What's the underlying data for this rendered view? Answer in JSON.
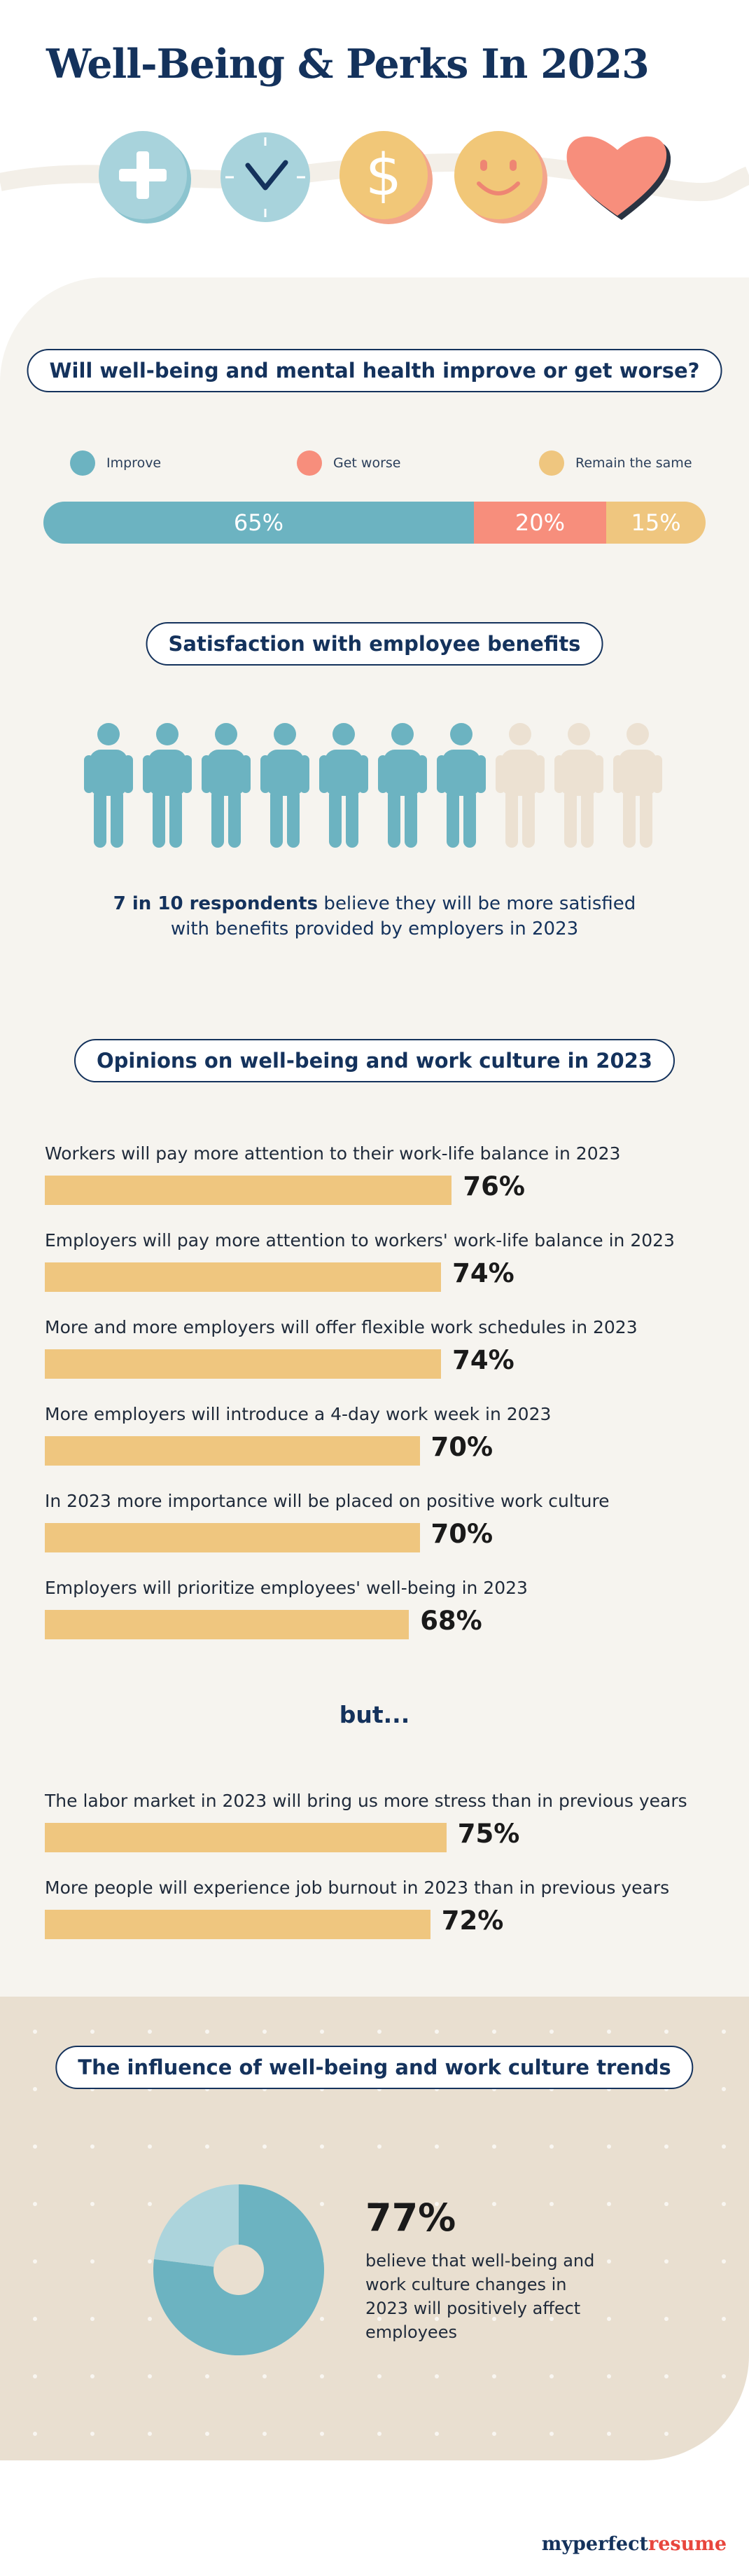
{
  "header": {
    "title": "Well-Being & Perks In 2023",
    "icons": [
      "plus-icon",
      "clock-icon",
      "dollar-icon",
      "smiley-icon",
      "heart-icon"
    ]
  },
  "colors": {
    "navy": "#14325c",
    "teal": "#6cb3c1",
    "coral": "#f78e7c",
    "gold": "#efc67f",
    "cream": "#f6f4ef",
    "sand": "#e9dfd0"
  },
  "chart_data": [
    {
      "type": "bar",
      "title": "Will well-being and mental health improve or get worse?",
      "stacked": true,
      "orientation": "horizontal",
      "legend_position": "top",
      "series": [
        {
          "name": "Improve",
          "value": 65,
          "label": "65%",
          "color": "#6cb3c1"
        },
        {
          "name": "Get worse",
          "value": 20,
          "label": "20%",
          "color": "#f78e7c"
        },
        {
          "name": "Remain the same",
          "value": 15,
          "label": "15%",
          "color": "#efc67f"
        }
      ]
    },
    {
      "type": "pictogram",
      "title": "Satisfaction with employee benefits",
      "filled": 7,
      "total": 10,
      "text_bold": "7 in 10 respondents",
      "text_line1": " believe they will be more satisfied",
      "text_line2": "with benefits provided by employers in 2023"
    },
    {
      "type": "bar",
      "title": "Opinions on well-being and work culture in 2023",
      "orientation": "horizontal",
      "items": [
        {
          "label": "Workers will pay more attention to their work-life balance in 2023",
          "value": 76,
          "value_label": "76%"
        },
        {
          "label": "Employers will pay more attention to workers' work-life balance in 2023",
          "value": 74,
          "value_label": "74%"
        },
        {
          "label": "More and more employers will offer flexible work schedules in 2023",
          "value": 74,
          "value_label": "74%"
        },
        {
          "label": "More employers will introduce a 4-day work week in 2023",
          "value": 70,
          "value_label": "70%"
        },
        {
          "label": "In 2023 more importance will be placed on positive work culture",
          "value": 70,
          "value_label": "70%"
        },
        {
          "label": "Employers will prioritize employees' well-being in 2023",
          "value": 68,
          "value_label": "68%"
        }
      ],
      "separator": "but...",
      "items_after": [
        {
          "label": "The labor market in 2023 will bring us more stress than in previous years",
          "value": 75,
          "value_label": "75%"
        },
        {
          "label": "More people will experience job burnout in 2023 than in previous years",
          "value": 72,
          "value_label": "72%"
        }
      ]
    },
    {
      "type": "pie",
      "donut": true,
      "title": "The influence of well-being and work culture trends",
      "slices": [
        {
          "value": 77,
          "color": "#6cb3c1"
        },
        {
          "value": 23,
          "color": "#acd4dc"
        }
      ],
      "value_label": "77%",
      "text": "believe that well-being and work culture changes in 2023 will positively affect employees"
    }
  ],
  "footer": {
    "brand_part1": "myperfect",
    "brand_part2": "resume"
  }
}
